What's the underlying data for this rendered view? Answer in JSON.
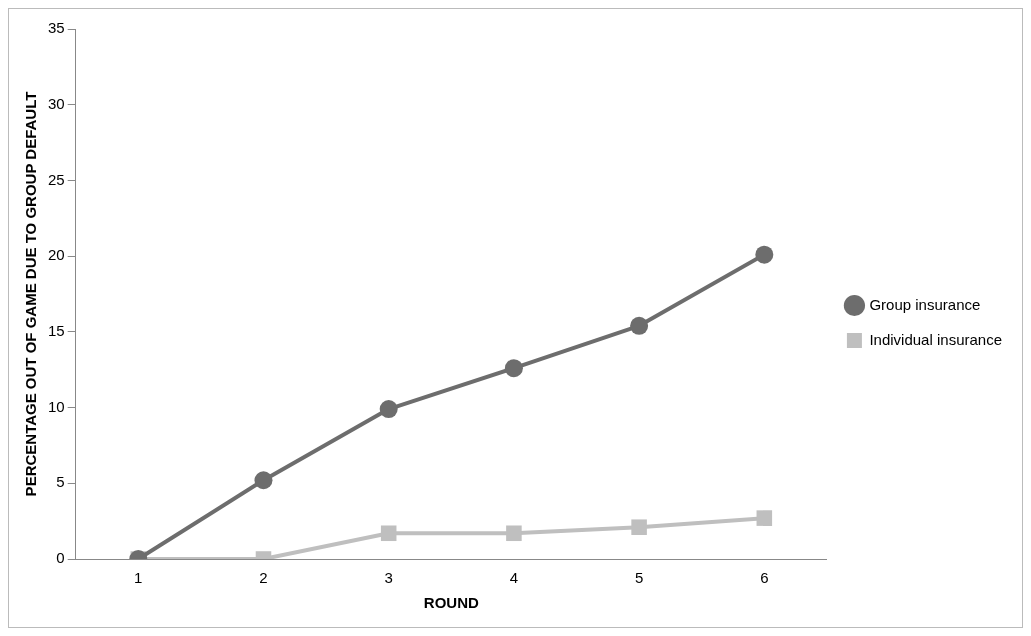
{
  "chart_data": {
    "type": "line",
    "xlabel": "ROUND",
    "ylabel": "PERCENTAGE OUT OF GAME DUE TO GROUP DEFAULT",
    "categories": [
      "1",
      "2",
      "3",
      "4",
      "5",
      "6"
    ],
    "series": [
      {
        "name": "Group insurance",
        "color": "#6d6d6d",
        "marker": "circle",
        "values": [
          0,
          5.2,
          9.9,
          12.6,
          15.4,
          20.1
        ]
      },
      {
        "name": "Individual insurance",
        "color": "#bfbfbf",
        "marker": "square",
        "values": [
          0,
          0,
          1.7,
          1.7,
          2.1,
          2.7
        ]
      }
    ],
    "ylim": [
      0,
      35
    ],
    "yticks": [
      0,
      5,
      10,
      15,
      20,
      25,
      30,
      35
    ],
    "grid": false,
    "legend": "right",
    "line_style": "solid"
  }
}
